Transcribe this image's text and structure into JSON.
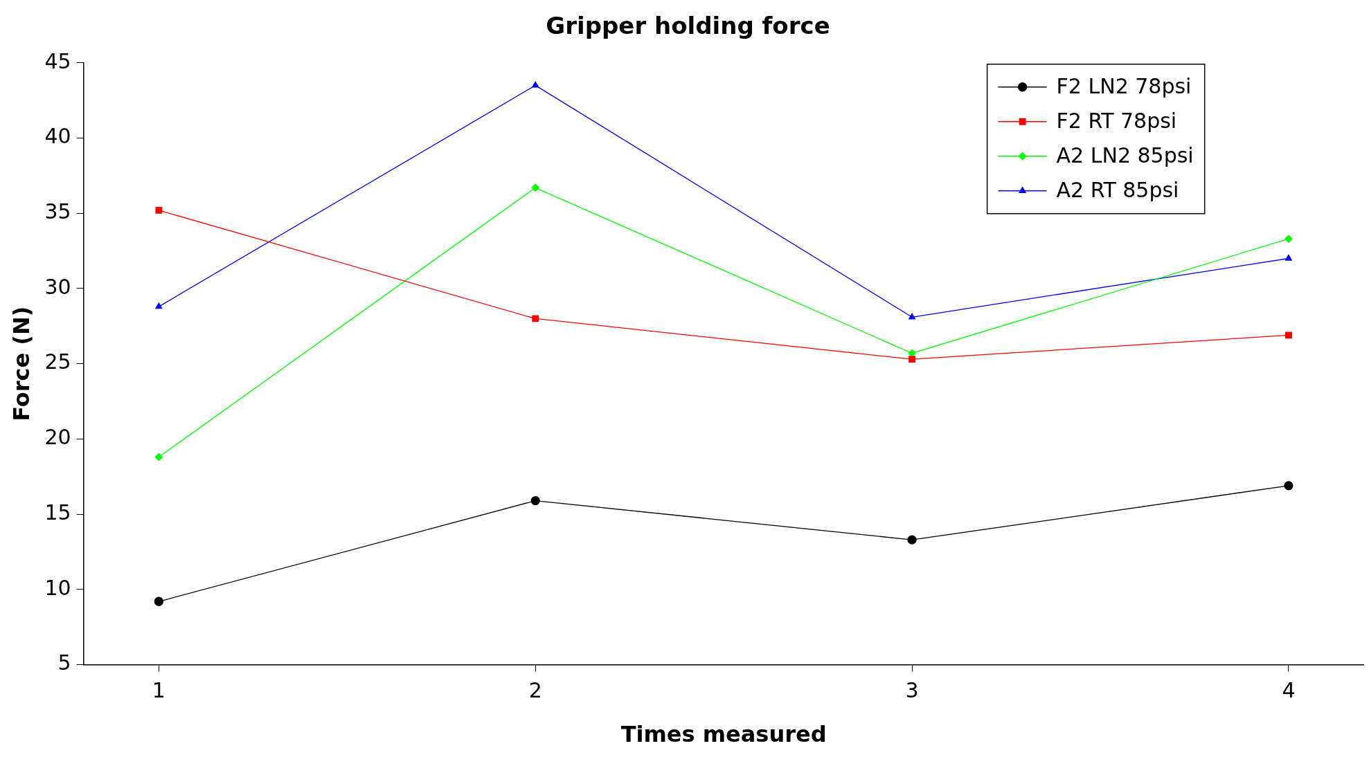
{
  "chart_data": {
    "type": "line",
    "title": "Gripper holding force",
    "xlabel": "Times measured",
    "ylabel": "Force (N)",
    "xlim": [
      0.8,
      4.2
    ],
    "xticks": [
      1,
      2,
      3,
      4
    ],
    "ylim": [
      5,
      45
    ],
    "yticks": [
      5,
      10,
      15,
      20,
      25,
      30,
      35,
      40,
      45
    ],
    "grid": false,
    "legend": "top right",
    "line_style": "solid",
    "series": [
      {
        "name": "F2 LN2 78psi",
        "color": "#000000",
        "marker": "circle",
        "x": [
          1,
          2,
          3,
          4
        ],
        "values": [
          9.2,
          15.9,
          13.3,
          16.9
        ]
      },
      {
        "name": "F2 RT 78psi",
        "color": "#ff0000",
        "marker": "square",
        "x": [
          1,
          2,
          3,
          4
        ],
        "values": [
          35.2,
          28.0,
          25.3,
          26.9
        ]
      },
      {
        "name": "A2 LN2 85psi",
        "color": "#00ff00",
        "marker": "diamond",
        "x": [
          1,
          2,
          3,
          4
        ],
        "values": [
          18.8,
          36.7,
          25.7,
          33.3
        ]
      },
      {
        "name": "A2 RT 85psi",
        "color": "#0000ff",
        "marker": "triangle",
        "x": [
          1,
          2,
          3,
          4
        ],
        "values": [
          28.8,
          43.5,
          28.1,
          32.0
        ]
      }
    ]
  }
}
